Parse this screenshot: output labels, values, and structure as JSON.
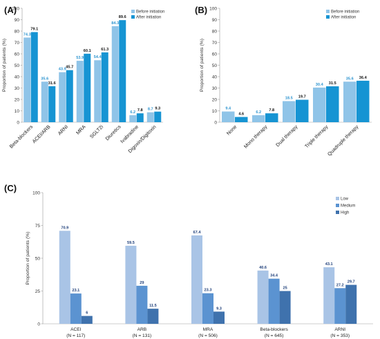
{
  "chart_data": [
    {
      "panel": "(A)",
      "type": "bar",
      "title": "",
      "xlabel": "",
      "ylabel": "Proportion of patients (%)",
      "ylim": [
        0,
        100
      ],
      "yticks": [
        "0",
        "10",
        "20",
        "30",
        "40",
        "50",
        "60",
        "70",
        "80",
        "90",
        "100"
      ],
      "categories": [
        "Beta-blockers",
        "ACEI/ARB",
        "ARNI",
        "MRA",
        "SGLT2i",
        "Diuretics",
        "Ivabradine",
        "Digoxin/Digitoxin"
      ],
      "series": [
        {
          "name": "Before initiation",
          "values": [
            74.3,
            35.6,
            43.9,
            53.9,
            54.4,
            84.3,
            6.2,
            8.7
          ],
          "labels": [
            "74.3",
            "35.6",
            "43.9",
            "53.9",
            "54.4",
            "84.3",
            "6.2",
            "8.7"
          ],
          "color": "#8fc4e8",
          "label_color": "#2f95d0"
        },
        {
          "name": "After initiation",
          "values": [
            79.1,
            31.6,
            45.7,
            60.1,
            61.3,
            89.6,
            7.8,
            9.3
          ],
          "labels": [
            "79.1",
            "31.6",
            "45.7",
            "60.1",
            "61.3",
            "89.6",
            "7.8",
            "9.3"
          ],
          "color": "#1694d3",
          "label_color": "#111111"
        }
      ],
      "legend": "top-right",
      "grid": false
    },
    {
      "panel": "(B)",
      "type": "bar",
      "title": "",
      "xlabel": "",
      "ylabel": "Proportion of patients (%)",
      "ylim": [
        0,
        100
      ],
      "yticks": [
        "0",
        "10",
        "20",
        "30",
        "40",
        "50",
        "60",
        "70",
        "80",
        "90",
        "100"
      ],
      "categories": [
        "None",
        "Mono therapy",
        "Dual therapy",
        "Triple therapy",
        "Quadruple therapy"
      ],
      "series": [
        {
          "name": "Before initiation",
          "values": [
            9.4,
            6.2,
            18.5,
            30.4,
            35.6
          ],
          "labels": [
            "9.4",
            "6.2",
            "18.5",
            "30.4",
            "35.6"
          ],
          "color": "#8fc4e8",
          "label_color": "#2f95d0"
        },
        {
          "name": "After initiation",
          "values": [
            4.6,
            7.8,
            19.7,
            31.5,
            36.4
          ],
          "labels": [
            "4.6",
            "7.8",
            "19.7",
            "31.5",
            "36.4"
          ],
          "color": "#1694d3",
          "label_color": "#111111"
        }
      ],
      "legend": "top-right",
      "grid": false
    },
    {
      "panel": "(C)",
      "type": "bar",
      "title": "",
      "xlabel": "",
      "ylabel": "Proportion of patients (%)",
      "ylim": [
        0,
        100
      ],
      "yticks": [
        "0",
        "25",
        "50",
        "75",
        "100"
      ],
      "categories": [
        "ACEI",
        "ARB",
        "MRA",
        "Beta-blockers",
        "ARNI"
      ],
      "category_sublabels": [
        "(N = 117)",
        "(N = 131)",
        "(N = 506)",
        "(N = 645)",
        "(N = 353)"
      ],
      "series": [
        {
          "name": "Low",
          "values": [
            70.9,
            59.5,
            67.4,
            40.6,
            43.1
          ],
          "labels": [
            "70.9",
            "59.5",
            "67.4",
            "40.6",
            "43.1"
          ],
          "color": "#a9c4e6",
          "label_color": "#1f3f7a"
        },
        {
          "name": "Medium",
          "values": [
            23.1,
            29,
            23.3,
            34.4,
            27.2
          ],
          "labels": [
            "23.1",
            "29",
            "23.3",
            "34.4",
            "27.2"
          ],
          "color": "#5b93d1",
          "label_color": "#1f3f7a"
        },
        {
          "name": "High",
          "values": [
            6,
            11.5,
            9.3,
            25,
            29.7
          ],
          "labels": [
            "6",
            "11.5",
            "9.3",
            "25",
            "29.7"
          ],
          "color": "#3f72ad",
          "label_color": "#1f3f7a"
        }
      ],
      "legend": "top-right",
      "grid": false
    }
  ]
}
